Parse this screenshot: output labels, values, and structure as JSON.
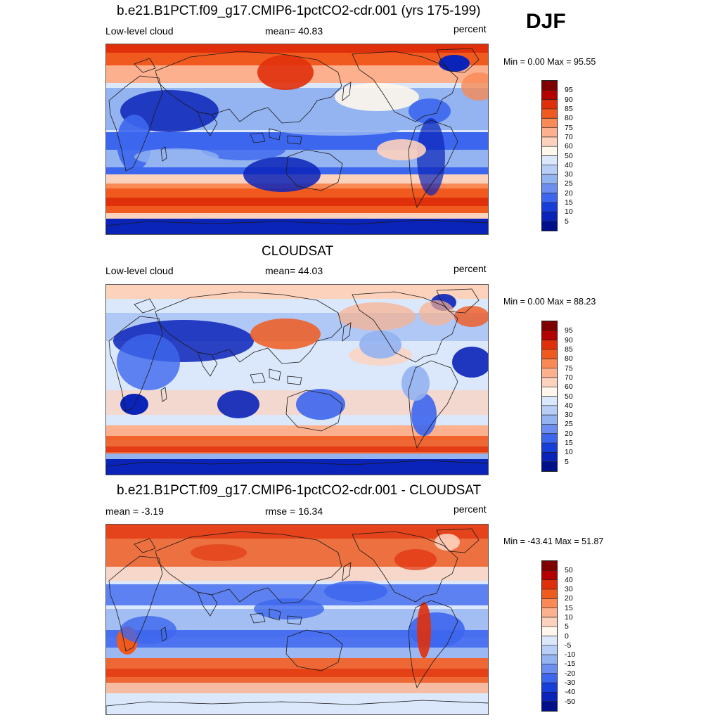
{
  "season": "DJF",
  "panels": [
    {
      "title": "b.e21.B1PCT.f09_g17.CMIP6-1pctCO2-cdr.001 (yrs 175-199)",
      "left_label": "Low-level cloud",
      "center_label": "mean=  40.83",
      "right_label": "percent",
      "minmax": "Min =   0.00 Max =  95.55",
      "colorbar": {
        "labels": [
          "95",
          "90",
          "85",
          "80",
          "75",
          "70",
          "60",
          "50",
          "40",
          "30",
          "25",
          "20",
          "15",
          "10",
          "5"
        ],
        "colors": [
          "#7f0000",
          "#b30000",
          "#e0300b",
          "#f05a1f",
          "#f98a55",
          "#fcb08d",
          "#fdd2bd",
          "#fff7ec",
          "#dbe8fb",
          "#b7cff6",
          "#93b3f1",
          "#6b8ef0",
          "#3d66ee",
          "#153fd8",
          "#0a23b8",
          "#00108a"
        ]
      },
      "map_kind": "model"
    },
    {
      "title": "CLOUDSAT",
      "left_label": "Low-level cloud",
      "center_label": "mean=  44.03",
      "right_label": "percent",
      "minmax": "Min =   0.00 Max =  88.23",
      "colorbar": {
        "labels": [
          "95",
          "90",
          "85",
          "80",
          "75",
          "70",
          "60",
          "50",
          "40",
          "30",
          "25",
          "20",
          "15",
          "10",
          "5"
        ],
        "colors": [
          "#7f0000",
          "#b30000",
          "#e0300b",
          "#f05a1f",
          "#f98a55",
          "#fcb08d",
          "#fdd2bd",
          "#fff7ec",
          "#dbe8fb",
          "#b7cff6",
          "#93b3f1",
          "#6b8ef0",
          "#3d66ee",
          "#153fd8",
          "#0a23b8",
          "#00108a"
        ]
      },
      "map_kind": "obs"
    },
    {
      "title": "b.e21.B1PCT.f09_g17.CMIP6-1pctCO2-cdr.001 - CLOUDSAT",
      "left_label": "mean =  -3.19",
      "center_label": "rmse =  16.34",
      "right_label": "percent",
      "minmax": "Min = -43.41 Max =  51.87",
      "colorbar": {
        "labels": [
          "50",
          "40",
          "30",
          "20",
          "15",
          "10",
          "5",
          "0",
          "-5",
          "-10",
          "-15",
          "-20",
          "-30",
          "-40",
          "-50"
        ],
        "colors": [
          "#7f0000",
          "#b30000",
          "#e0300b",
          "#f05a1f",
          "#f98a55",
          "#fcb08d",
          "#fdd2bd",
          "#fff7ec",
          "#dbe8fb",
          "#b7cff6",
          "#93b3f1",
          "#6b8ef0",
          "#3d66ee",
          "#153fd8",
          "#0a23b8",
          "#00108a"
        ]
      },
      "map_kind": "diff"
    }
  ]
}
